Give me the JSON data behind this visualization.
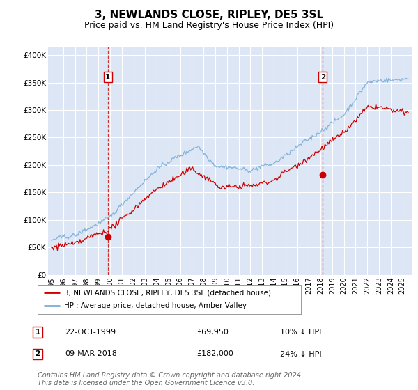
{
  "title": "3, NEWLANDS CLOSE, RIPLEY, DE5 3SL",
  "subtitle": "Price paid vs. HM Land Registry's House Price Index (HPI)",
  "title_fontsize": 11,
  "subtitle_fontsize": 9,
  "plot_bg_color": "#dce6f5",
  "ylabel_ticks": [
    "£0",
    "£50K",
    "£100K",
    "£150K",
    "£200K",
    "£250K",
    "£300K",
    "£350K",
    "£400K"
  ],
  "ytick_values": [
    0,
    50000,
    100000,
    150000,
    200000,
    250000,
    300000,
    350000,
    400000
  ],
  "ylim": [
    0,
    415000
  ],
  "xlim_start": 1994.7,
  "xlim_end": 2025.8,
  "xtick_years": [
    1995,
    1996,
    1997,
    1998,
    1999,
    2000,
    2001,
    2002,
    2003,
    2004,
    2005,
    2006,
    2007,
    2008,
    2009,
    2010,
    2011,
    2012,
    2013,
    2014,
    2015,
    2016,
    2017,
    2018,
    2019,
    2020,
    2021,
    2022,
    2023,
    2024,
    2025
  ],
  "sale1_x": 1999.81,
  "sale1_y": 69950,
  "sale1_label": "1",
  "sale1_date": "22-OCT-1999",
  "sale1_price": "£69,950",
  "sale1_hpi": "10% ↓ HPI",
  "sale2_x": 2018.19,
  "sale2_y": 182000,
  "sale2_label": "2",
  "sale2_date": "09-MAR-2018",
  "sale2_price": "£182,000",
  "sale2_hpi": "24% ↓ HPI",
  "line_color_red": "#cc0000",
  "line_color_blue": "#7aaed6",
  "vline_color": "#cc0000",
  "marker_color": "#cc0000",
  "legend_label_red": "3, NEWLANDS CLOSE, RIPLEY, DE5 3SL (detached house)",
  "legend_label_blue": "HPI: Average price, detached house, Amber Valley",
  "footer": "Contains HM Land Registry data © Crown copyright and database right 2024.\nThis data is licensed under the Open Government Licence v3.0.",
  "footer_fontsize": 7.0
}
